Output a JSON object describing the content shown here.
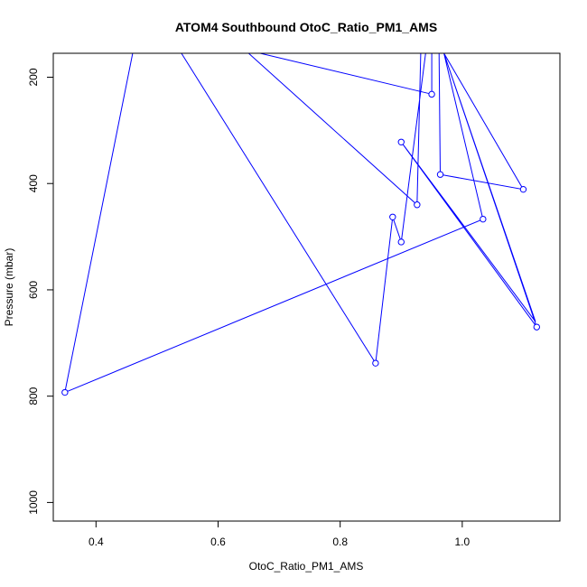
{
  "chart_data": {
    "type": "line",
    "title": "ATOM4 Southbound OtoC_Ratio_PM1_AMS",
    "xlabel": "OtoC_Ratio_PM1_AMS",
    "ylabel": "Pressure (mbar)",
    "xlim": [
      0.33,
      1.16
    ],
    "ylim": [
      1035,
      155
    ],
    "x_ticks": [
      0.4,
      0.6,
      0.8,
      1.0
    ],
    "x_tick_labels": [
      "0.4",
      "0.6",
      "0.8",
      "1.0"
    ],
    "y_ticks": [
      200,
      400,
      600,
      800,
      1000
    ],
    "y_tick_labels": [
      "200",
      "400",
      "600",
      "800",
      "1000"
    ],
    "series": [
      {
        "color": "#0000ff",
        "marker": "open-circle",
        "x": [
          0.349,
          0.46,
          0.54,
          0.858,
          0.886,
          0.9,
          0.94,
          0.932,
          0.926,
          0.65,
          0.669,
          0.95,
          0.95,
          0.962,
          0.964,
          1.1,
          0.97,
          1.122,
          0.9,
          1.12,
          0.97,
          1.034,
          0.349
        ],
        "y": [
          793,
          155,
          155,
          738,
          463,
          510,
          155,
          155,
          440,
          155,
          155,
          232,
          155,
          155,
          383,
          411,
          155,
          670,
          322,
          660,
          155,
          467,
          793
        ],
        "marker_points": [
          [
            0.349,
            793
          ],
          [
            0.858,
            738
          ],
          [
            0.886,
            463
          ],
          [
            0.9,
            510
          ],
          [
            0.926,
            440
          ],
          [
            0.95,
            232
          ],
          [
            0.964,
            383
          ],
          [
            1.1,
            411
          ],
          [
            1.122,
            670
          ],
          [
            0.9,
            322
          ],
          [
            1.034,
            467
          ]
        ]
      }
    ],
    "grid": false,
    "legend": "none"
  }
}
